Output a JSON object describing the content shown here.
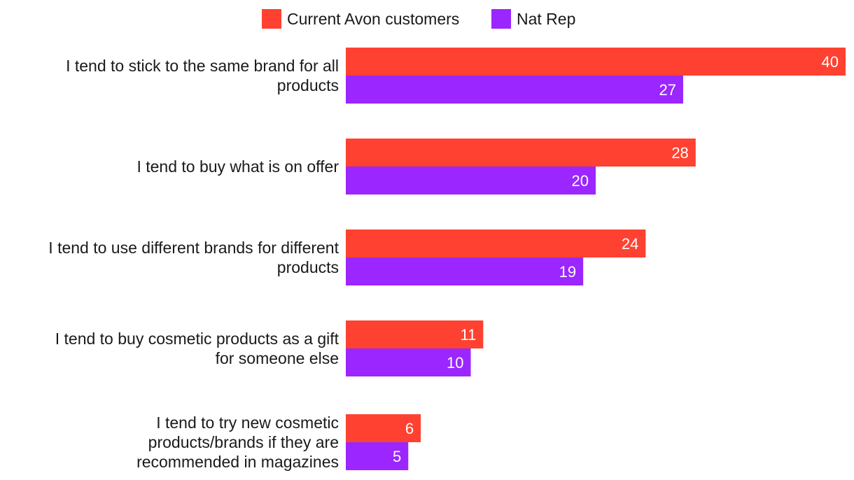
{
  "colors": {
    "current": "#ff4131",
    "natrep": "#9b26ff"
  },
  "legend": {
    "current_label": "Current Avon customers",
    "natrep_label": "Nat Rep"
  },
  "chart_data": {
    "type": "bar",
    "orientation": "horizontal",
    "title": "",
    "xlabel": "",
    "ylabel": "",
    "xlim": [
      0,
      40
    ],
    "grid": false,
    "legend_position": "top-center",
    "categories": [
      [
        "I tend to stick to the same brand for all",
        "products"
      ],
      [
        "I tend to buy what is on offer"
      ],
      [
        "I tend to use different brands for different",
        "products"
      ],
      [
        "I tend to buy cosmetic products as a gift",
        "for someone else"
      ],
      [
        "I tend to try new cosmetic",
        "products/brands if they are",
        "recommended in magazines"
      ]
    ],
    "series": [
      {
        "name": "Current Avon customers",
        "values": [
          40,
          28,
          24,
          11,
          6
        ]
      },
      {
        "name": "Nat Rep",
        "values": [
          27,
          20,
          19,
          10,
          5
        ]
      }
    ]
  }
}
